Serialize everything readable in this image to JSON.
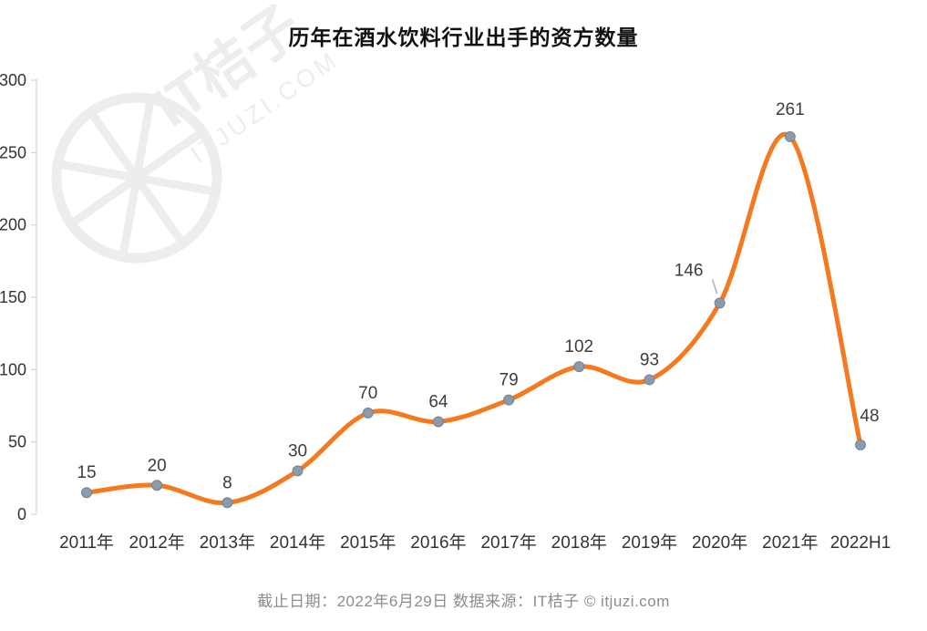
{
  "chart_data": {
    "type": "line",
    "title": "历年在酒水饮料行业出手的资方数量",
    "categories": [
      "2011年",
      "2012年",
      "2013年",
      "2014年",
      "2015年",
      "2016年",
      "2017年",
      "2018年",
      "2019年",
      "2020年",
      "2021年",
      "2022H1"
    ],
    "values": [
      15,
      20,
      8,
      30,
      70,
      64,
      79,
      102,
      93,
      146,
      261,
      48
    ],
    "ylabel": "",
    "xlabel": "",
    "ylim": [
      0,
      300
    ],
    "yticks": [
      0,
      50,
      100,
      150,
      200,
      250,
      300
    ],
    "grid": false,
    "legend_position": "none",
    "line_color": "#f5791e",
    "point_color": "#8b9baa",
    "point_edge_color": "#73848f",
    "label_color": "#3d3d3d",
    "axis_text_color": "#333333",
    "axis_line_color": "#cfcfcf"
  },
  "watermark": {
    "line1": "IT桔子",
    "line2": "ITJUZI.COM"
  },
  "footer": {
    "text": "截止日期：2022年6月29日    数据来源：IT桔子 © itjuzi.com"
  }
}
